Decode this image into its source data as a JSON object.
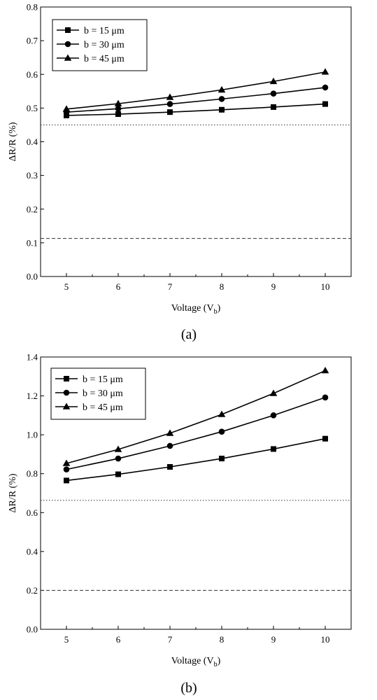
{
  "chart_data": [
    {
      "type": "line",
      "caption": "(a)",
      "xlabel": "Voltage (V",
      "xlabel_sub": "b",
      "xlabel_close": ")",
      "ylabel": "ΔR/R (%)",
      "xlim": [
        4.5,
        10.5
      ],
      "ylim": [
        0.0,
        0.8
      ],
      "xticks": [
        5,
        6,
        7,
        8,
        9,
        10
      ],
      "yticks": [
        "0.0",
        "0.1",
        "0.2",
        "0.3",
        "0.4",
        "0.5",
        "0.6",
        "0.7",
        "0.8"
      ],
      "grid": false,
      "legend_position": "top-left",
      "x": [
        5,
        6,
        7,
        8,
        9,
        10
      ],
      "series": [
        {
          "name": "b = 15 μm",
          "marker": "square",
          "values": [
            0.478,
            0.482,
            0.488,
            0.495,
            0.503,
            0.512
          ]
        },
        {
          "name": "b = 30 μm",
          "marker": "circle",
          "values": [
            0.488,
            0.498,
            0.512,
            0.527,
            0.543,
            0.561
          ]
        },
        {
          "name": "b = 45 μm",
          "marker": "triangle",
          "values": [
            0.497,
            0.513,
            0.532,
            0.554,
            0.579,
            0.607
          ]
        }
      ],
      "reference_lines": [
        {
          "style": "dotted",
          "y": 0.45
        },
        {
          "style": "dashed",
          "y": 0.113
        }
      ]
    },
    {
      "type": "line",
      "caption": "(b)",
      "xlabel": "Voltage (V",
      "xlabel_sub": "b",
      "xlabel_close": ")",
      "ylabel": "ΔR/R (%)",
      "xlim": [
        4.5,
        10.5
      ],
      "ylim": [
        0.0,
        1.4
      ],
      "xticks": [
        5,
        6,
        7,
        8,
        9,
        10
      ],
      "yticks": [
        "0.0",
        "0.2",
        "0.4",
        "0.6",
        "0.8",
        "1.0",
        "1.2",
        "1.4"
      ],
      "grid": false,
      "legend_position": "top-left",
      "x": [
        5,
        6,
        7,
        8,
        9,
        10
      ],
      "series": [
        {
          "name": "b = 15 μm",
          "marker": "square",
          "values": [
            0.765,
            0.797,
            0.835,
            0.878,
            0.927,
            0.98
          ]
        },
        {
          "name": "b = 30 μm",
          "marker": "circle",
          "values": [
            0.822,
            0.878,
            0.943,
            1.016,
            1.1,
            1.192
          ]
        },
        {
          "name": "b = 45 μm",
          "marker": "triangle",
          "values": [
            0.853,
            0.925,
            1.008,
            1.105,
            1.213,
            1.33
          ]
        }
      ],
      "reference_lines": [
        {
          "style": "dotted",
          "y": 0.663
        },
        {
          "style": "dashed",
          "y": 0.2
        }
      ]
    }
  ]
}
